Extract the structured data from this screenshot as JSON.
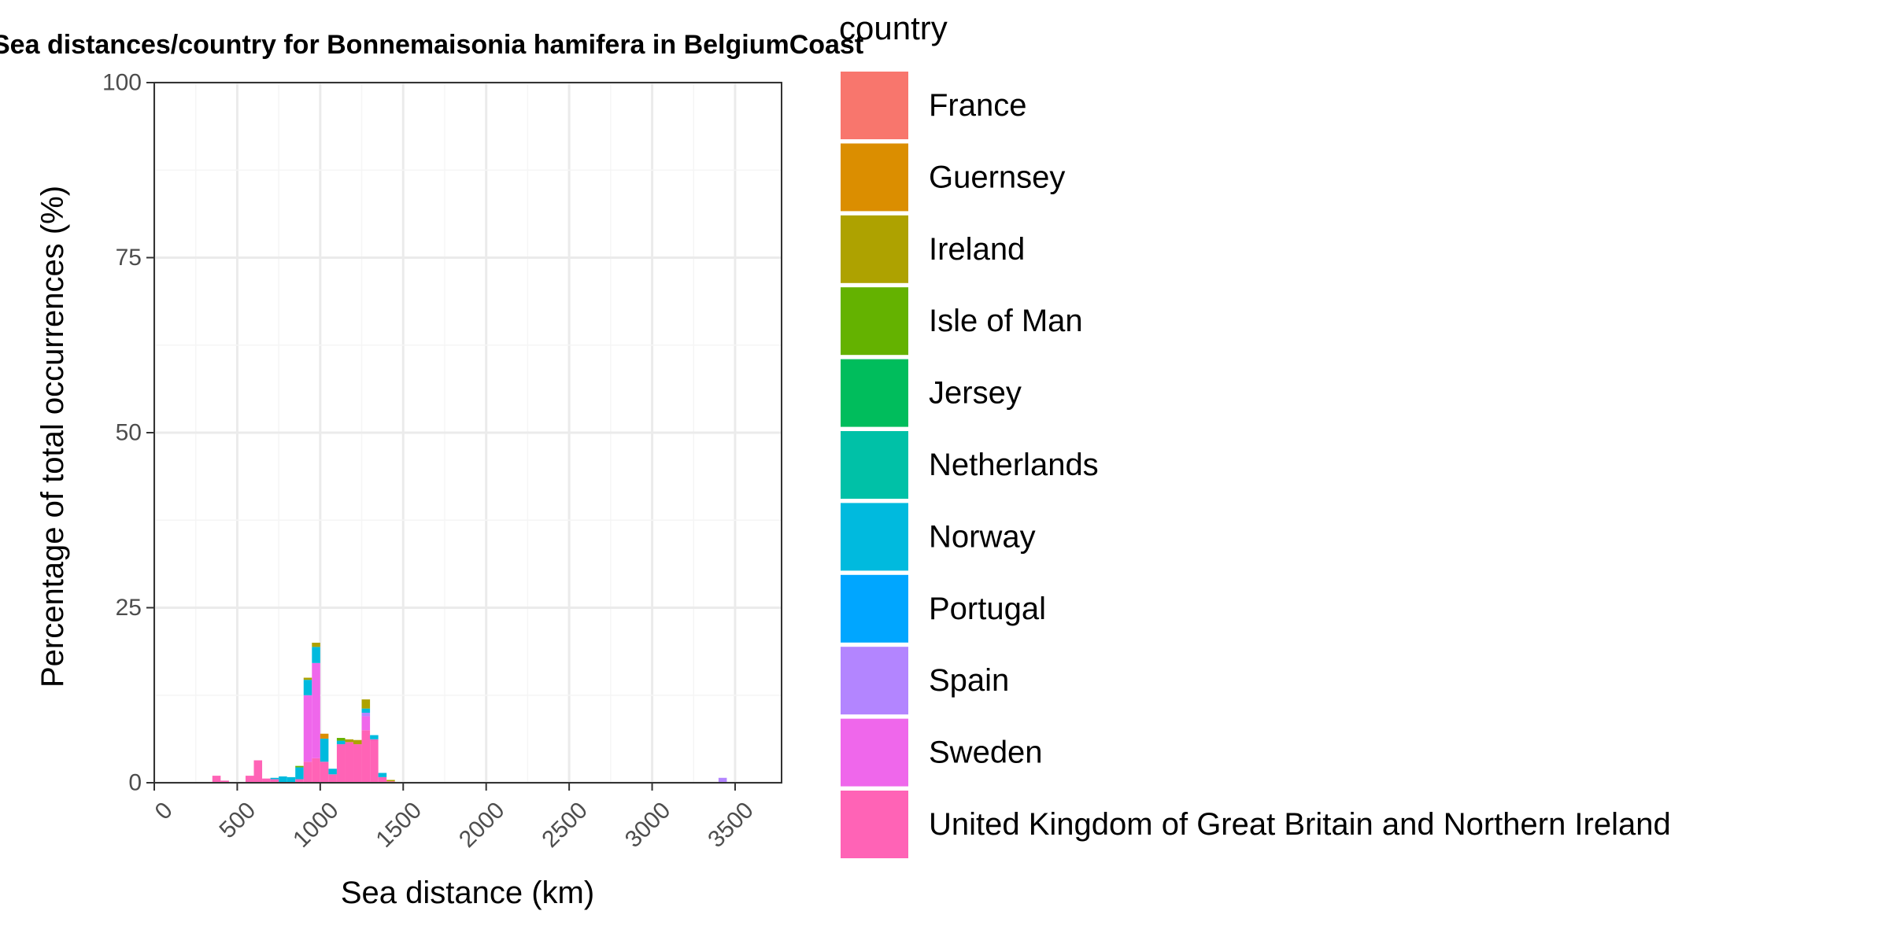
{
  "chart_data": {
    "type": "bar",
    "stacked": true,
    "title": "Sea distances/country for Bonnemaisonia hamifera in BelgiumCoast",
    "xlabel": "Sea distance (km)",
    "ylabel": "Percentage of total occurrences (%)",
    "xlim": [
      0,
      3780
    ],
    "ylim": [
      0,
      100
    ],
    "x_ticks": [
      "0",
      "500",
      "1000",
      "1500",
      "2000",
      "2500",
      "3000",
      "3500"
    ],
    "y_ticks": [
      "0",
      "25",
      "50",
      "75",
      "100"
    ],
    "bin_width_km": 50,
    "grid": true,
    "legend": {
      "title": "country",
      "placement": "right",
      "entries": [
        {
          "name": "France",
          "color": "#F8766D"
        },
        {
          "name": "Guernsey",
          "color": "#DB8E00"
        },
        {
          "name": "Ireland",
          "color": "#AEA200"
        },
        {
          "name": "Isle of Man",
          "color": "#64B200"
        },
        {
          "name": "Jersey",
          "color": "#00BD5C"
        },
        {
          "name": "Netherlands",
          "color": "#00C1A7"
        },
        {
          "name": "Norway",
          "color": "#00BADE"
        },
        {
          "name": "Portugal",
          "color": "#00A6FF"
        },
        {
          "name": "Spain",
          "color": "#B385FF"
        },
        {
          "name": "Sweden",
          "color": "#EF67EB"
        },
        {
          "name": "United Kingdom of Great Britain and Northern Ireland",
          "color": "#FF63B6"
        }
      ]
    },
    "bins": [
      {
        "x": 375,
        "segments": {
          "United Kingdom of Great Britain and Northern Ireland": 1.0
        }
      },
      {
        "x": 425,
        "segments": {
          "United Kingdom of Great Britain and Northern Ireland": 0.3
        }
      },
      {
        "x": 575,
        "segments": {
          "United Kingdom of Great Britain and Northern Ireland": 1.0
        }
      },
      {
        "x": 625,
        "segments": {
          "United Kingdom of Great Britain and Northern Ireland": 3.2
        }
      },
      {
        "x": 675,
        "segments": {
          "United Kingdom of Great Britain and Northern Ireland": 0.6
        }
      },
      {
        "x": 725,
        "segments": {
          "United Kingdom of Great Britain and Northern Ireland": 0.5,
          "Norway": 0.2
        }
      },
      {
        "x": 775,
        "segments": {
          "Norway": 0.9
        }
      },
      {
        "x": 825,
        "segments": {
          "Norway": 0.8
        }
      },
      {
        "x": 875,
        "segments": {
          "United Kingdom of Great Britain and Northern Ireland": 0.5,
          "Norway": 1.7,
          "Isle of Man": 0.2
        }
      },
      {
        "x": 925,
        "segments": {
          "United Kingdom of Great Britain and Northern Ireland": 3.0,
          "Sweden": 9.5,
          "Norway": 2.2,
          "Ireland": 0.3
        }
      },
      {
        "x": 975,
        "segments": {
          "United Kingdom of Great Britain and Northern Ireland": 3.5,
          "Sweden": 13.6,
          "Norway": 2.3,
          "Ireland": 0.6
        }
      },
      {
        "x": 1025,
        "segments": {
          "United Kingdom of Great Britain and Northern Ireland": 3.0,
          "Norway": 3.3,
          "Guernsey": 0.7
        }
      },
      {
        "x": 1075,
        "segments": {
          "United Kingdom of Great Britain and Northern Ireland": 1.2,
          "Norway": 0.8
        }
      },
      {
        "x": 1125,
        "segments": {
          "United Kingdom of Great Britain and Northern Ireland": 5.5,
          "Norway": 0.5,
          "Isle of Man": 0.4
        }
      },
      {
        "x": 1175,
        "segments": {
          "United Kingdom of Great Britain and Northern Ireland": 5.8,
          "Ireland": 0.4
        }
      },
      {
        "x": 1225,
        "segments": {
          "United Kingdom of Great Britain and Northern Ireland": 5.5,
          "Ireland": 0.6
        }
      },
      {
        "x": 1275,
        "segments": {
          "United Kingdom of Great Britain and Northern Ireland": 7.5,
          "Sweden": 2.0,
          "Spain": 0.5,
          "Norway": 0.6,
          "Ireland": 1.3
        }
      },
      {
        "x": 1325,
        "segments": {
          "United Kingdom of Great Britain and Northern Ireland": 6.2,
          "Norway": 0.6
        }
      },
      {
        "x": 1375,
        "segments": {
          "United Kingdom of Great Britain and Northern Ireland": 0.8,
          "Norway": 0.6
        }
      },
      {
        "x": 1425,
        "segments": {
          "United Kingdom of Great Britain and Northern Ireland": 0.2,
          "Ireland": 0.2
        }
      },
      {
        "x": 3425,
        "segments": {
          "Spain": 0.7
        }
      }
    ]
  }
}
